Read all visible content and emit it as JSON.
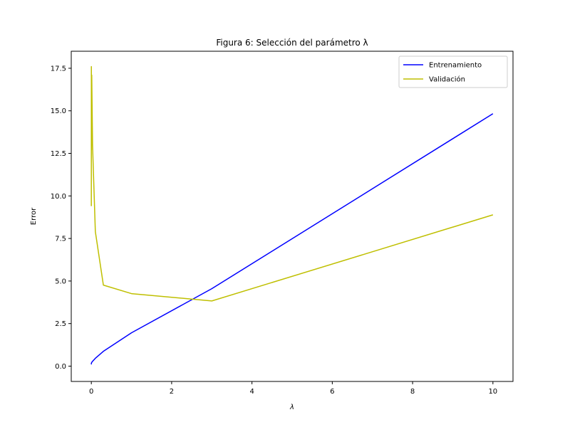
{
  "chart_data": {
    "type": "line",
    "title": "Figura 6: Selección del parámetro λ",
    "xlabel": "λ",
    "ylabel": "Error",
    "xlim": [
      -0.5,
      10.5
    ],
    "ylim": [
      -0.9,
      18.5
    ],
    "xticks": [
      0,
      2,
      4,
      6,
      8,
      10
    ],
    "xtick_labels": [
      "0",
      "2",
      "4",
      "6",
      "8",
      "10"
    ],
    "yticks": [
      0.0,
      2.5,
      5.0,
      7.5,
      10.0,
      12.5,
      15.0,
      17.5
    ],
    "ytick_labels": [
      "0.0",
      "2.5",
      "5.0",
      "7.5",
      "10.0",
      "12.5",
      "15.0",
      "17.5"
    ],
    "grid": false,
    "legend_position": "top-right",
    "x": [
      0,
      0.001,
      0.003,
      0.01,
      0.03,
      0.1,
      0.3,
      1,
      3,
      10
    ],
    "series": [
      {
        "name": "Entrenamiento",
        "color": "#0000ff",
        "values": [
          0.1,
          0.15,
          0.18,
          0.22,
          0.28,
          0.46,
          0.87,
          1.96,
          4.55,
          14.83
        ]
      },
      {
        "name": "Validación",
        "color": "#bfbf00",
        "values": [
          9.4,
          17.6,
          12.7,
          17.1,
          13.0,
          7.9,
          4.76,
          4.26,
          3.83,
          8.89
        ]
      }
    ]
  }
}
